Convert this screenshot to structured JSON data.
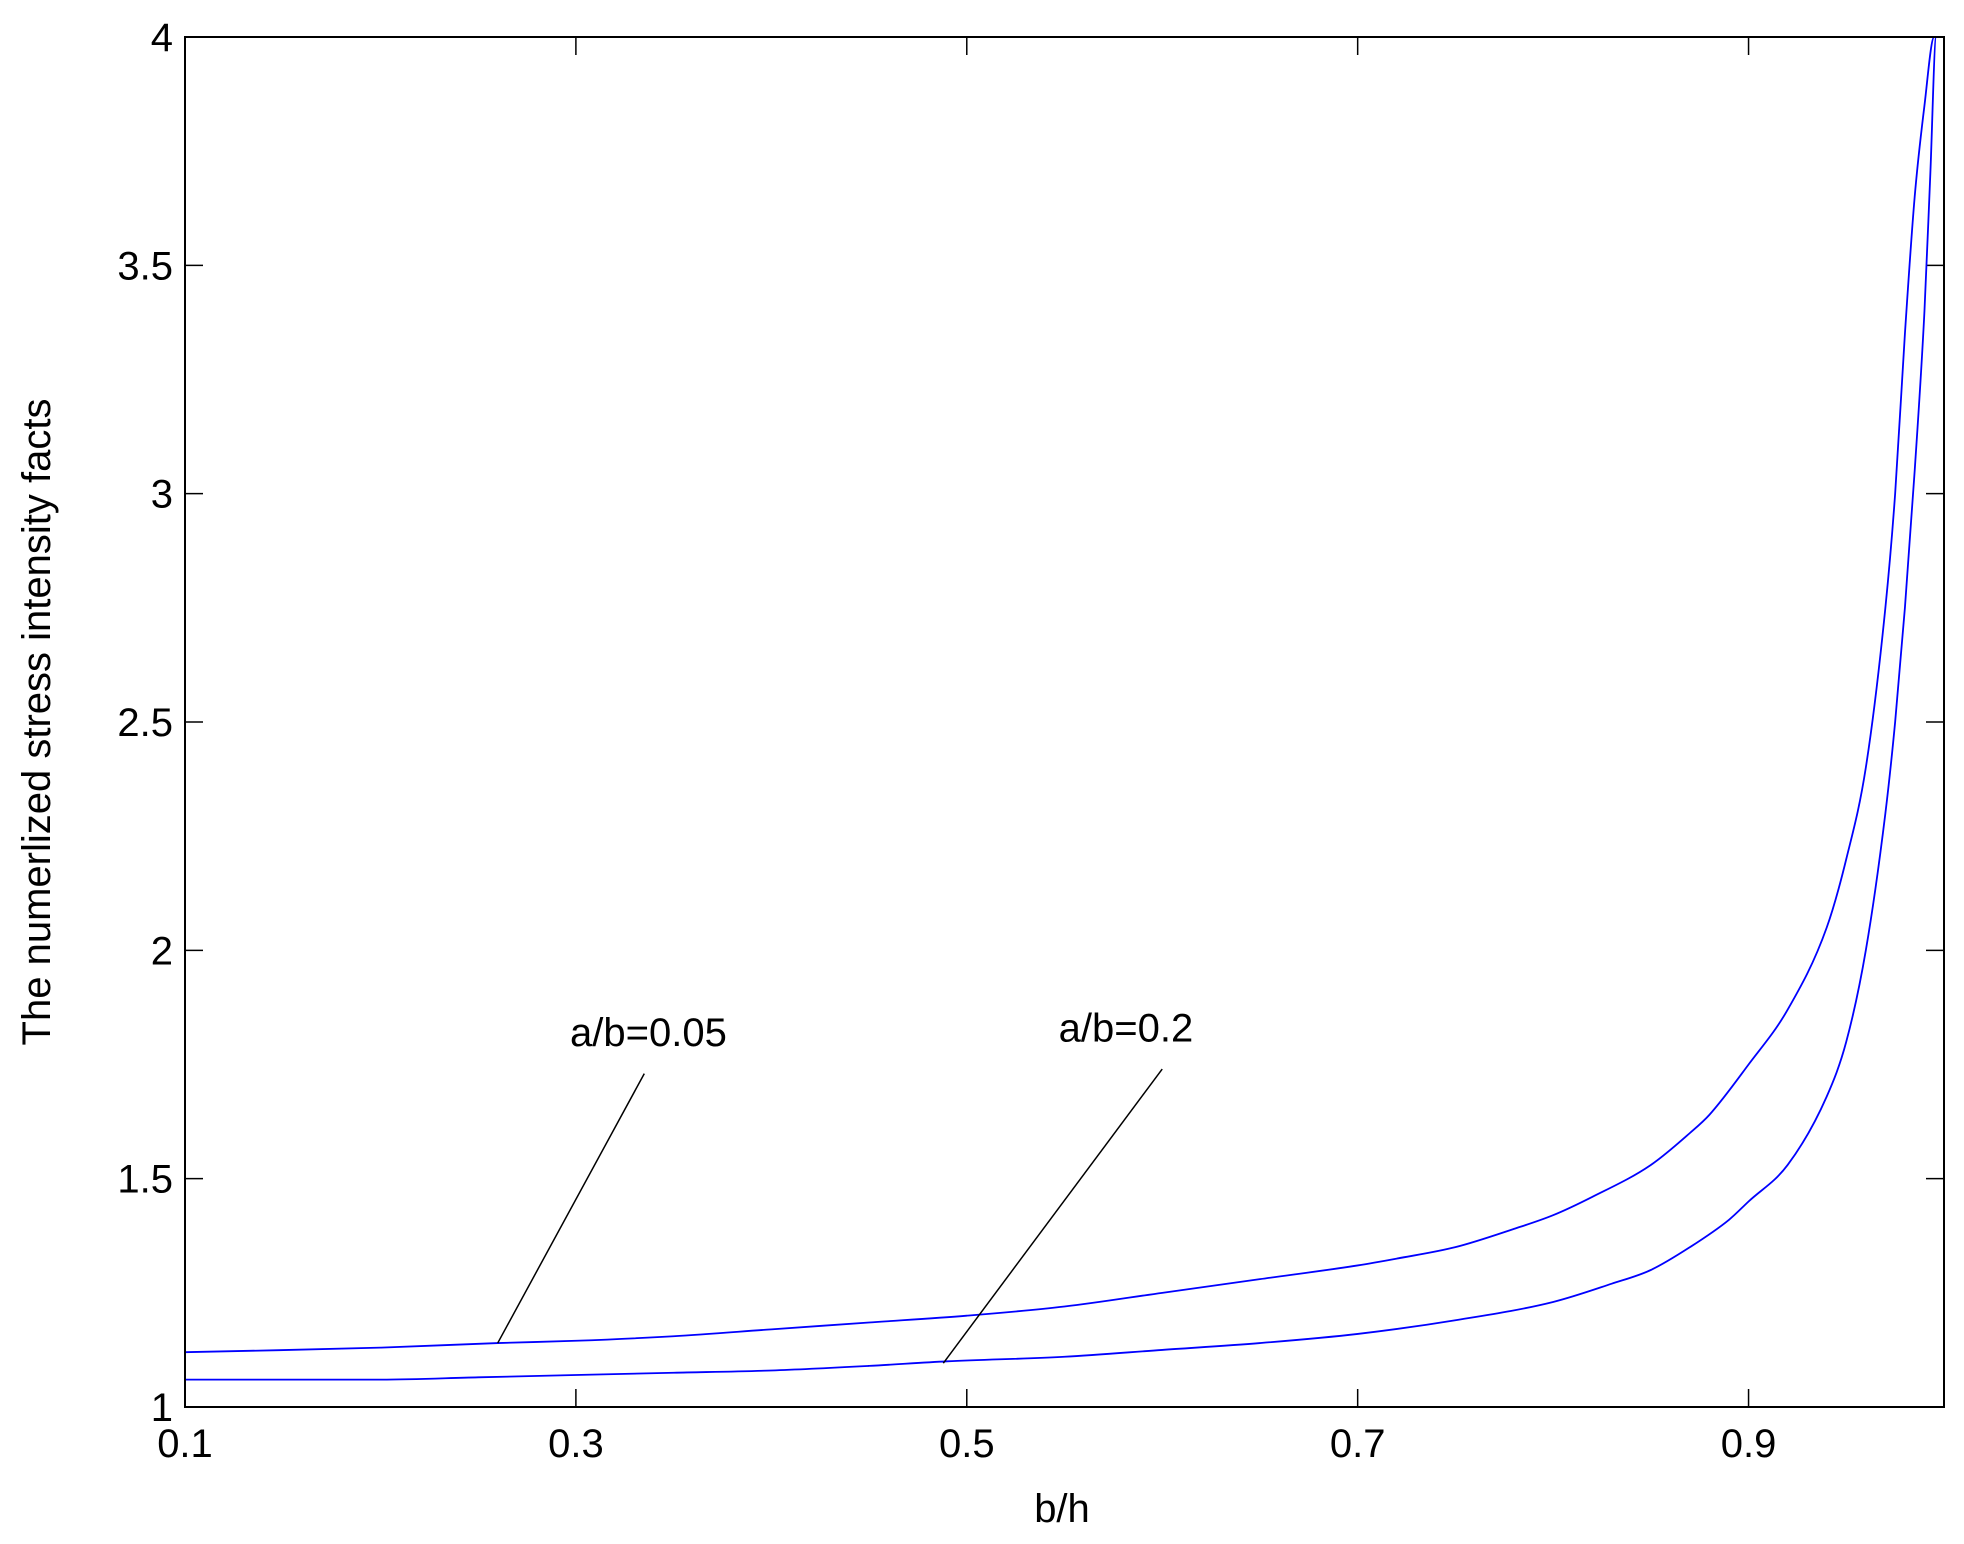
{
  "chart_data": {
    "type": "line",
    "title": "",
    "xlabel": "b/h",
    "ylabel": "The numerlized stress intensity facts",
    "xlim": [
      0.1,
      1.0
    ],
    "ylim": [
      1,
      4
    ],
    "x_ticks": [
      0.1,
      0.3,
      0.5,
      0.7,
      0.9
    ],
    "x_tick_labels": [
      "0.1",
      "0.3",
      "0.5",
      "0.7",
      "0.9"
    ],
    "y_ticks": [
      1,
      1.5,
      2,
      2.5,
      3,
      3.5,
      4
    ],
    "y_tick_labels": [
      "1",
      "1.5",
      "2",
      "2.5",
      "3",
      "3.5",
      "4"
    ],
    "grid": false,
    "line_color": "#0000ff",
    "series": [
      {
        "name": "a/b=0.05",
        "x": [
          0.1,
          0.2,
          0.26,
          0.3,
          0.35,
          0.4,
          0.45,
          0.5,
          0.55,
          0.6,
          0.65,
          0.7,
          0.72,
          0.75,
          0.78,
          0.8,
          0.82,
          0.85,
          0.87,
          0.88,
          0.9,
          0.92,
          0.94,
          0.95,
          0.96,
          0.97,
          0.975,
          0.98,
          0.985,
          0.99,
          0.995,
          0.999
        ],
        "y": [
          1.12,
          1.13,
          1.14,
          1.145,
          1.155,
          1.17,
          1.185,
          1.2,
          1.22,
          1.25,
          1.28,
          1.31,
          1.325,
          1.35,
          1.39,
          1.42,
          1.46,
          1.53,
          1.6,
          1.64,
          1.75,
          1.87,
          2.05,
          2.2,
          2.4,
          2.75,
          3.0,
          3.35,
          3.65,
          3.85,
          4.0,
          4.0
        ]
      },
      {
        "name": "a/b=0.2",
        "x": [
          0.1,
          0.2,
          0.25,
          0.3,
          0.35,
          0.4,
          0.45,
          0.49,
          0.55,
          0.6,
          0.65,
          0.7,
          0.75,
          0.8,
          0.83,
          0.85,
          0.87,
          0.89,
          0.9,
          0.92,
          0.94,
          0.95,
          0.96,
          0.97,
          0.975,
          0.98,
          0.985,
          0.99,
          0.993,
          0.996,
          0.999
        ],
        "y": [
          1.06,
          1.06,
          1.065,
          1.07,
          1.075,
          1.08,
          1.09,
          1.1,
          1.11,
          1.125,
          1.14,
          1.16,
          1.19,
          1.23,
          1.27,
          1.3,
          1.35,
          1.41,
          1.45,
          1.53,
          1.68,
          1.8,
          2.0,
          2.3,
          2.5,
          2.75,
          3.05,
          3.4,
          3.7,
          4.0,
          4.0
        ]
      }
    ],
    "annotations": [
      {
        "text": "a/b=0.05",
        "x": 0.297,
        "y": 1.79,
        "arrow_from": [
          0.335,
          1.73
        ],
        "arrow_to": [
          0.26,
          1.14
        ]
      },
      {
        "text": "a/b=0.2",
        "x": 0.547,
        "y": 1.8,
        "arrow_from": [
          0.6,
          1.74
        ],
        "arrow_to": [
          0.488,
          1.096
        ]
      }
    ]
  }
}
